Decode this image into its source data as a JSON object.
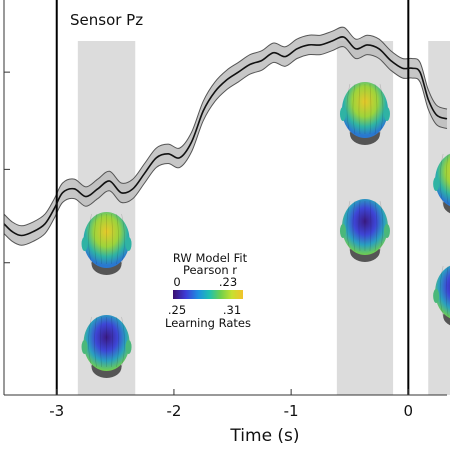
{
  "chart_data": {
    "type": "line",
    "title": "Sensor Pz",
    "xlabel": "Time (s)",
    "ylabel": "",
    "xlim": [
      -3.45,
      0.33
    ],
    "ylim": [
      0,
      1
    ],
    "x_ticks": [
      -3,
      -2,
      -1,
      0
    ],
    "x_tick_labels": [
      "-3",
      "-2",
      "-1",
      "0"
    ],
    "y_ticks": [
      0.34,
      0.58,
      0.83
    ],
    "series": [
      {
        "x": [
          -3.45,
          -3.38,
          -3.3,
          -3.2,
          -3.1,
          -3.02,
          -2.95,
          -2.85,
          -2.75,
          -2.65,
          -2.55,
          -2.45,
          -2.35,
          -2.25,
          -2.15,
          -2.05,
          -1.95,
          -1.85,
          -1.75,
          -1.65,
          -1.55,
          -1.45,
          -1.35,
          -1.25,
          -1.15,
          -1.05,
          -0.95,
          -0.85,
          -0.75,
          -0.65,
          -0.55,
          -0.45,
          -0.35,
          -0.25,
          -0.15,
          -0.05,
          0.03,
          0.1,
          0.17,
          0.24,
          0.33
        ],
        "values": [
          0.44,
          0.42,
          0.41,
          0.42,
          0.44,
          0.48,
          0.52,
          0.53,
          0.51,
          0.53,
          0.55,
          0.52,
          0.53,
          0.57,
          0.61,
          0.62,
          0.61,
          0.65,
          0.73,
          0.78,
          0.81,
          0.83,
          0.85,
          0.86,
          0.88,
          0.87,
          0.89,
          0.9,
          0.9,
          0.91,
          0.92,
          0.89,
          0.9,
          0.89,
          0.86,
          0.84,
          0.84,
          0.83,
          0.76,
          0.72,
          0.71
        ],
        "ci_halfwidth": 0.025
      }
    ],
    "vertical_lines": [
      -3,
      0
    ],
    "shaded_windows": [
      {
        "start": -2.82,
        "end": -2.33
      },
      {
        "start": -0.61,
        "end": -0.13
      },
      {
        "start": 0.17,
        "end": 0.68
      }
    ],
    "inset_legend": {
      "line1": "RW Model Fit",
      "line2": "Pearson r",
      "top_min": "0",
      "top_max": ".23",
      "bottom_min": ".25",
      "bottom_max": ".31",
      "bottom_label": "Learning Rates"
    },
    "colormap": [
      "#3b0f70",
      "#3d3bd6",
      "#1f8fe0",
      "#20c0b0",
      "#6fd04c",
      "#c6e030",
      "#f2c32b",
      "#f07a1e"
    ],
    "heads": [
      {
        "window": 0,
        "kind": "pearson"
      },
      {
        "window": 0,
        "kind": "learning_rate"
      },
      {
        "window": 1,
        "kind": "pearson"
      },
      {
        "window": 1,
        "kind": "learning_rate"
      },
      {
        "window": 2,
        "kind": "pearson"
      },
      {
        "window": 2,
        "kind": "learning_rate"
      }
    ]
  }
}
